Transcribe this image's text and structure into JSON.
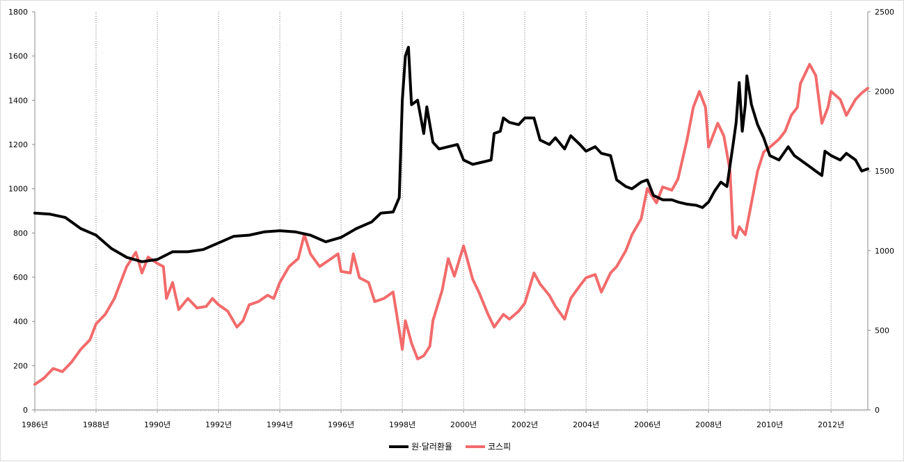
{
  "chart_data": {
    "type": "line",
    "title": "",
    "xlabel": "",
    "ylabel": "",
    "x_start": 1986,
    "x_end": 2013.2,
    "x_tick_labels": [
      "1986년",
      "1988년",
      "1990년",
      "1992년",
      "1994년",
      "1996년",
      "1998년",
      "2000년",
      "2002년",
      "2004년",
      "2006년",
      "2008년",
      "2010년",
      "2012년"
    ],
    "y_left_lim": [
      0,
      1800
    ],
    "y_left_ticks": [
      "0",
      "200",
      "400",
      "600",
      "800",
      "1000",
      "1200",
      "1400",
      "1600",
      "1800"
    ],
    "y_right_lim": [
      0,
      2500
    ],
    "y_right_ticks": [
      "0",
      "500",
      "1000",
      "1500",
      "2000",
      "2500"
    ],
    "grid": "vertical dotted lines at every second year",
    "legend_position": "bottom-center",
    "series": [
      {
        "name": "원·달러환율",
        "axis": "left",
        "color": "#000000",
        "points": [
          [
            1986.0,
            890
          ],
          [
            1986.5,
            885
          ],
          [
            1987.0,
            870
          ],
          [
            1987.5,
            820
          ],
          [
            1988.0,
            790
          ],
          [
            1988.5,
            730
          ],
          [
            1989.0,
            690
          ],
          [
            1989.5,
            670
          ],
          [
            1990.0,
            680
          ],
          [
            1990.5,
            715
          ],
          [
            1991.0,
            715
          ],
          [
            1991.5,
            725
          ],
          [
            1992.0,
            755
          ],
          [
            1992.5,
            785
          ],
          [
            1993.0,
            790
          ],
          [
            1993.5,
            805
          ],
          [
            1994.0,
            810
          ],
          [
            1994.5,
            805
          ],
          [
            1995.0,
            790
          ],
          [
            1995.5,
            760
          ],
          [
            1996.0,
            780
          ],
          [
            1996.5,
            820
          ],
          [
            1997.0,
            850
          ],
          [
            1997.3,
            890
          ],
          [
            1997.7,
            895
          ],
          [
            1997.9,
            960
          ],
          [
            1998.0,
            1400
          ],
          [
            1998.1,
            1600
          ],
          [
            1998.2,
            1640
          ],
          [
            1998.3,
            1380
          ],
          [
            1998.5,
            1400
          ],
          [
            1998.7,
            1250
          ],
          [
            1998.8,
            1370
          ],
          [
            1999.0,
            1210
          ],
          [
            1999.2,
            1180
          ],
          [
            1999.5,
            1190
          ],
          [
            1999.8,
            1200
          ],
          [
            2000.0,
            1130
          ],
          [
            2000.3,
            1110
          ],
          [
            2000.6,
            1120
          ],
          [
            2000.9,
            1130
          ],
          [
            2001.0,
            1250
          ],
          [
            2001.2,
            1260
          ],
          [
            2001.3,
            1320
          ],
          [
            2001.5,
            1300
          ],
          [
            2001.8,
            1290
          ],
          [
            2002.0,
            1320
          ],
          [
            2002.3,
            1320
          ],
          [
            2002.5,
            1220
          ],
          [
            2002.8,
            1200
          ],
          [
            2003.0,
            1230
          ],
          [
            2003.3,
            1180
          ],
          [
            2003.5,
            1240
          ],
          [
            2003.8,
            1200
          ],
          [
            2004.0,
            1170
          ],
          [
            2004.3,
            1190
          ],
          [
            2004.5,
            1160
          ],
          [
            2004.8,
            1150
          ],
          [
            2005.0,
            1040
          ],
          [
            2005.3,
            1010
          ],
          [
            2005.5,
            1000
          ],
          [
            2005.8,
            1030
          ],
          [
            2006.0,
            1040
          ],
          [
            2006.2,
            970
          ],
          [
            2006.5,
            950
          ],
          [
            2006.8,
            950
          ],
          [
            2007.0,
            940
          ],
          [
            2007.3,
            930
          ],
          [
            2007.6,
            925
          ],
          [
            2007.8,
            915
          ],
          [
            2008.0,
            940
          ],
          [
            2008.2,
            990
          ],
          [
            2008.4,
            1030
          ],
          [
            2008.6,
            1010
          ],
          [
            2008.8,
            1200
          ],
          [
            2008.9,
            1300
          ],
          [
            2009.0,
            1480
          ],
          [
            2009.1,
            1260
          ],
          [
            2009.2,
            1380
          ],
          [
            2009.25,
            1510
          ],
          [
            2009.4,
            1380
          ],
          [
            2009.6,
            1290
          ],
          [
            2009.8,
            1230
          ],
          [
            2010.0,
            1150
          ],
          [
            2010.3,
            1130
          ],
          [
            2010.6,
            1190
          ],
          [
            2010.8,
            1150
          ],
          [
            2011.0,
            1130
          ],
          [
            2011.3,
            1100
          ],
          [
            2011.5,
            1080
          ],
          [
            2011.7,
            1060
          ],
          [
            2011.8,
            1170
          ],
          [
            2012.0,
            1150
          ],
          [
            2012.3,
            1130
          ],
          [
            2012.5,
            1160
          ],
          [
            2012.8,
            1130
          ],
          [
            2013.0,
            1080
          ],
          [
            2013.2,
            1090
          ]
        ]
      },
      {
        "name": "코스피",
        "axis": "right",
        "color": "#f26b6b",
        "points": [
          [
            1986.0,
            160
          ],
          [
            1986.3,
            200
          ],
          [
            1986.6,
            260
          ],
          [
            1986.9,
            240
          ],
          [
            1987.2,
            300
          ],
          [
            1987.5,
            380
          ],
          [
            1987.8,
            440
          ],
          [
            1988.0,
            540
          ],
          [
            1988.3,
            600
          ],
          [
            1988.6,
            700
          ],
          [
            1988.8,
            800
          ],
          [
            1989.0,
            900
          ],
          [
            1989.3,
            990
          ],
          [
            1989.5,
            860
          ],
          [
            1989.7,
            960
          ],
          [
            1990.0,
            920
          ],
          [
            1990.2,
            900
          ],
          [
            1990.3,
            700
          ],
          [
            1990.5,
            800
          ],
          [
            1990.7,
            630
          ],
          [
            1991.0,
            700
          ],
          [
            1991.3,
            640
          ],
          [
            1991.6,
            650
          ],
          [
            1991.8,
            700
          ],
          [
            1992.0,
            660
          ],
          [
            1992.3,
            620
          ],
          [
            1992.6,
            520
          ],
          [
            1992.8,
            560
          ],
          [
            1993.0,
            660
          ],
          [
            1993.3,
            680
          ],
          [
            1993.6,
            720
          ],
          [
            1993.8,
            700
          ],
          [
            1994.0,
            800
          ],
          [
            1994.3,
            900
          ],
          [
            1994.6,
            950
          ],
          [
            1994.8,
            1100
          ],
          [
            1995.0,
            980
          ],
          [
            1995.3,
            900
          ],
          [
            1995.6,
            940
          ],
          [
            1995.9,
            980
          ],
          [
            1996.0,
            870
          ],
          [
            1996.3,
            860
          ],
          [
            1996.4,
            980
          ],
          [
            1996.6,
            830
          ],
          [
            1996.9,
            800
          ],
          [
            1997.1,
            680
          ],
          [
            1997.4,
            700
          ],
          [
            1997.7,
            740
          ],
          [
            1997.9,
            500
          ],
          [
            1998.0,
            380
          ],
          [
            1998.1,
            560
          ],
          [
            1998.3,
            420
          ],
          [
            1998.5,
            320
          ],
          [
            1998.7,
            340
          ],
          [
            1998.9,
            400
          ],
          [
            1999.0,
            560
          ],
          [
            1999.3,
            750
          ],
          [
            1999.5,
            950
          ],
          [
            1999.7,
            840
          ],
          [
            2000.0,
            1030
          ],
          [
            2000.3,
            820
          ],
          [
            2000.5,
            740
          ],
          [
            2000.8,
            600
          ],
          [
            2001.0,
            520
          ],
          [
            2001.3,
            600
          ],
          [
            2001.5,
            570
          ],
          [
            2001.8,
            620
          ],
          [
            2002.0,
            670
          ],
          [
            2002.3,
            860
          ],
          [
            2002.5,
            790
          ],
          [
            2002.8,
            720
          ],
          [
            2003.0,
            650
          ],
          [
            2003.3,
            570
          ],
          [
            2003.5,
            700
          ],
          [
            2003.8,
            780
          ],
          [
            2004.0,
            830
          ],
          [
            2004.3,
            850
          ],
          [
            2004.5,
            740
          ],
          [
            2004.8,
            860
          ],
          [
            2005.0,
            900
          ],
          [
            2005.3,
            1000
          ],
          [
            2005.5,
            1100
          ],
          [
            2005.8,
            1200
          ],
          [
            2006.0,
            1390
          ],
          [
            2006.3,
            1300
          ],
          [
            2006.5,
            1400
          ],
          [
            2006.8,
            1380
          ],
          [
            2007.0,
            1450
          ],
          [
            2007.3,
            1700
          ],
          [
            2007.5,
            1900
          ],
          [
            2007.7,
            2000
          ],
          [
            2007.9,
            1900
          ],
          [
            2008.0,
            1650
          ],
          [
            2008.3,
            1800
          ],
          [
            2008.5,
            1720
          ],
          [
            2008.7,
            1500
          ],
          [
            2008.8,
            1100
          ],
          [
            2008.9,
            1080
          ],
          [
            2009.0,
            1150
          ],
          [
            2009.2,
            1100
          ],
          [
            2009.4,
            1300
          ],
          [
            2009.6,
            1500
          ],
          [
            2009.8,
            1620
          ],
          [
            2010.0,
            1650
          ],
          [
            2010.3,
            1700
          ],
          [
            2010.5,
            1750
          ],
          [
            2010.7,
            1850
          ],
          [
            2010.9,
            1900
          ],
          [
            2011.0,
            2050
          ],
          [
            2011.3,
            2170
          ],
          [
            2011.5,
            2100
          ],
          [
            2011.7,
            1800
          ],
          [
            2011.9,
            1900
          ],
          [
            2012.0,
            2000
          ],
          [
            2012.3,
            1950
          ],
          [
            2012.5,
            1850
          ],
          [
            2012.8,
            1950
          ],
          [
            2013.0,
            1990
          ],
          [
            2013.2,
            2020
          ]
        ]
      }
    ]
  }
}
